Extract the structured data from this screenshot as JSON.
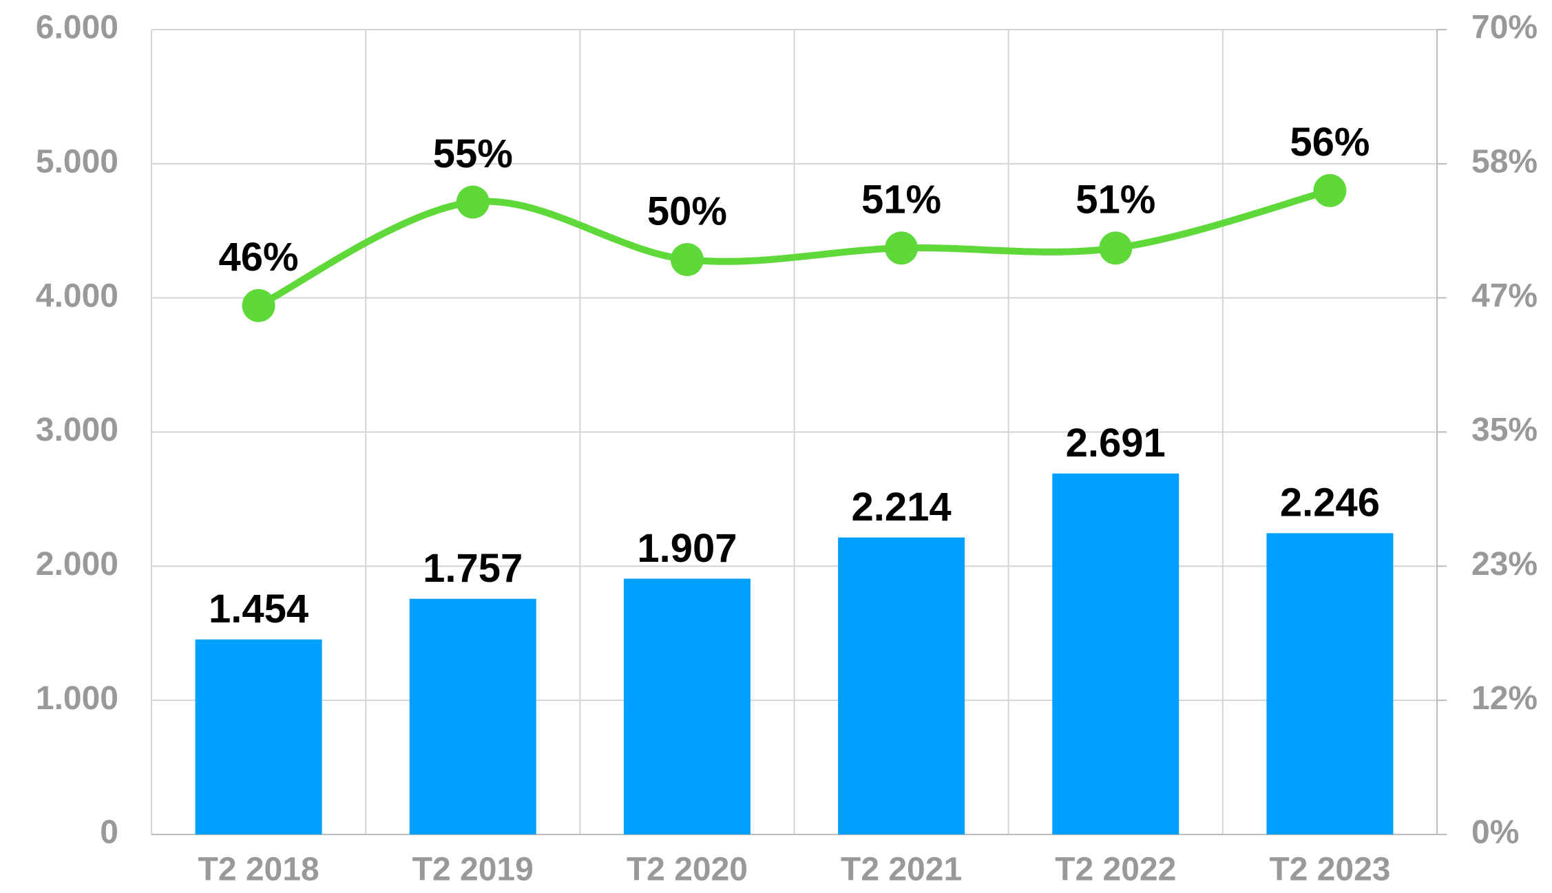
{
  "chart_data": {
    "type": "bar",
    "categories": [
      "T2 2018",
      "T2 2019",
      "T2 2020",
      "T2 2021",
      "T2 2022",
      "T2 2023"
    ],
    "series": [
      {
        "type": "bar",
        "color": "#00a0ff",
        "values": [
          1454,
          1757,
          1907,
          2214,
          2691,
          2246
        ],
        "value_labels": [
          "1.454",
          "1.757",
          "1.907",
          "2.214",
          "2.691",
          "2.246"
        ]
      },
      {
        "type": "line",
        "axis": "y2",
        "color": "#5fd83a",
        "values": [
          46,
          55,
          50,
          51,
          51,
          56
        ],
        "value_labels": [
          "46%",
          "55%",
          "50%",
          "51%",
          "51%",
          "56%"
        ]
      }
    ],
    "ylim": [
      0,
      6000
    ],
    "yticks": [
      0,
      {
        "value": 1000,
        "label": "1.000"
      },
      {
        "value": 2000,
        "label": "2.000"
      },
      {
        "value": 3000,
        "label": "3.000"
      },
      {
        "value": 4000,
        "label": "4.000"
      },
      {
        "value": 5000,
        "label": "5.000"
      },
      {
        "value": 6000,
        "label": "6.000"
      }
    ],
    "y2lim": [
      0,
      70
    ],
    "y2ticks": [
      {
        "value": 0,
        "label": "0%"
      },
      {
        "value": 11.67,
        "label": "12%"
      },
      {
        "value": 23.33,
        "label": "23%"
      },
      {
        "value": 35,
        "label": "35%"
      },
      {
        "value": 46.67,
        "label": "47%"
      },
      {
        "value": 58.33,
        "label": "58%"
      },
      {
        "value": 70,
        "label": "70%"
      }
    ],
    "grid": true
  }
}
